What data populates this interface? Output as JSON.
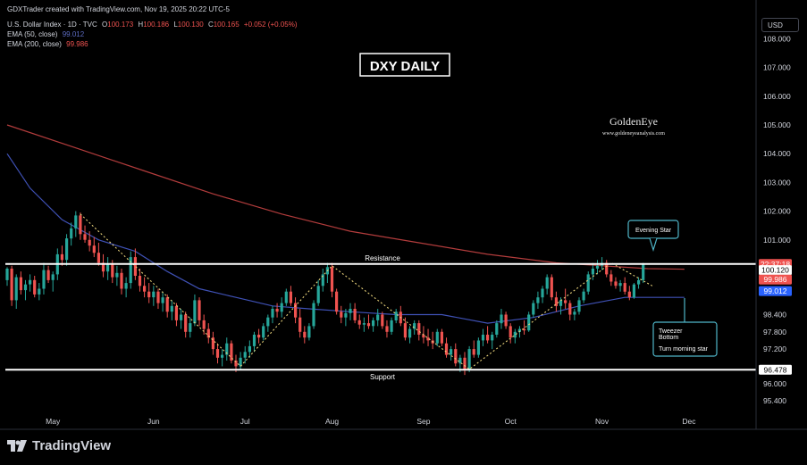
{
  "header": {
    "creator": "GDXTrader created with TradingView.com, Nov 19, 2025 20:22 UTC-5",
    "symbol": "U.S. Dollar Index · 1D · TVC",
    "ohlc": {
      "o_label": "O",
      "o": "100.173",
      "h_label": "H",
      "h": "100.186",
      "l_label": "L",
      "l": "100.130",
      "c_label": "C",
      "c": "100.165",
      "change": "+0.052 (+0.05%)"
    },
    "ema50": {
      "label": "EMA (50, close)",
      "value": "99.012"
    },
    "ema200": {
      "label": "EMA (200, close)",
      "value": "99.986"
    }
  },
  "currency_button": "USD",
  "title": "DXY DAILY",
  "watermark": {
    "name": "GoldenEye",
    "url": "www.goldeneyeanalysis.com"
  },
  "annotations": {
    "resistance": "Resistance",
    "support": "Support",
    "evening_star": "Evening Star",
    "tweezer_line1": "Tweezer",
    "tweezer_line2": "Bottom",
    "tweezer_line3": "Turn morning star"
  },
  "brand": "TradingView",
  "colors": {
    "background": "#000000",
    "up": "#26a69a",
    "down": "#ef5350",
    "ema50": "#3f51b5",
    "ema200": "#b23c3c",
    "level_line": "#ffffff",
    "callout_border": "#4fb6c9",
    "zigzag": "#e8d27a"
  },
  "chart_data": {
    "type": "candlestick",
    "price_axis": {
      "ticks": [
        "108.000",
        "107.000",
        "106.000",
        "105.000",
        "104.000",
        "103.000",
        "102.000",
        "101.000",
        "100.120",
        "98.400",
        "97.800",
        "97.200",
        "96.000",
        "95.400"
      ],
      "ylim": [
        95.0,
        108.5
      ],
      "badges": [
        {
          "label": "22:37:18",
          "value": 100.16,
          "color": "#ef5350",
          "text_color": "#ffffff"
        },
        {
          "label": "100.120",
          "value": 99.95,
          "color": "#ffffff",
          "text_color": "#000000"
        },
        {
          "label": "99.986",
          "value": 99.62,
          "color": "#ef5350",
          "text_color": "#ffffff"
        },
        {
          "label": "99.012",
          "value": 99.22,
          "color": "#2962ff",
          "text_color": "#ffffff"
        },
        {
          "label": "96.478",
          "value": 96.48,
          "color": "#ffffff",
          "text_color": "#000000"
        }
      ]
    },
    "time_axis": {
      "labels": [
        "May",
        "Jun",
        "Jul",
        "Aug",
        "Sep",
        "Oct",
        "Nov",
        "Dec"
      ],
      "label_positions": [
        10,
        32,
        52,
        71,
        91,
        110,
        130,
        149
      ],
      "n_slots": 156
    },
    "levels": {
      "resistance": 100.16,
      "support": 96.48
    },
    "ema200": [
      [
        0,
        105.0
      ],
      [
        15,
        104.2
      ],
      [
        30,
        103.4
      ],
      [
        45,
        102.6
      ],
      [
        60,
        101.9
      ],
      [
        75,
        101.3
      ],
      [
        90,
        100.9
      ],
      [
        105,
        100.5
      ],
      [
        120,
        100.2
      ],
      [
        140,
        100.0
      ],
      [
        148,
        99.98
      ]
    ],
    "ema50": [
      [
        0,
        104.0
      ],
      [
        5,
        102.8
      ],
      [
        12,
        101.7
      ],
      [
        20,
        101.0
      ],
      [
        28,
        100.6
      ],
      [
        35,
        99.9
      ],
      [
        42,
        99.3
      ],
      [
        50,
        99.0
      ],
      [
        58,
        98.7
      ],
      [
        66,
        98.6
      ],
      [
        75,
        98.5
      ],
      [
        85,
        98.4
      ],
      [
        95,
        98.4
      ],
      [
        105,
        98.1
      ],
      [
        115,
        98.3
      ],
      [
        125,
        98.7
      ],
      [
        135,
        99.0
      ],
      [
        148,
        99.0
      ]
    ],
    "zigzag": [
      [
        16,
        101.9
      ],
      [
        51,
        96.6
      ],
      [
        71,
        100.1
      ],
      [
        101,
        96.5
      ],
      [
        132,
        100.2
      ],
      [
        141,
        99.4
      ]
    ],
    "candles": [
      [
        99.6,
        100.05,
        99.4,
        100.0
      ],
      [
        100.0,
        100.1,
        98.7,
        98.9
      ],
      [
        98.9,
        99.8,
        98.6,
        99.7
      ],
      [
        99.7,
        99.9,
        99.1,
        99.25
      ],
      [
        99.25,
        99.6,
        98.9,
        99.45
      ],
      [
        99.45,
        99.8,
        99.2,
        99.6
      ],
      [
        99.6,
        99.75,
        99.0,
        99.1
      ],
      [
        99.1,
        99.5,
        98.9,
        99.3
      ],
      [
        99.3,
        100.2,
        99.1,
        99.95
      ],
      [
        99.95,
        100.1,
        99.5,
        99.6
      ],
      [
        99.6,
        99.9,
        99.2,
        99.8
      ],
      [
        99.8,
        100.7,
        99.6,
        100.5
      ],
      [
        100.5,
        100.8,
        100.1,
        100.3
      ],
      [
        100.3,
        101.2,
        100.1,
        101.05
      ],
      [
        101.05,
        101.6,
        100.8,
        101.4
      ],
      [
        101.4,
        102.0,
        101.1,
        101.85
      ],
      [
        101.85,
        101.95,
        101.0,
        101.2
      ],
      [
        101.2,
        101.5,
        100.9,
        101.0
      ],
      [
        101.0,
        101.3,
        100.6,
        100.8
      ],
      [
        100.8,
        101.1,
        100.4,
        100.55
      ],
      [
        100.55,
        100.9,
        100.1,
        100.2
      ],
      [
        100.2,
        100.5,
        99.7,
        99.9
      ],
      [
        99.9,
        100.4,
        99.6,
        100.15
      ],
      [
        100.15,
        100.3,
        99.5,
        99.7
      ],
      [
        99.7,
        100.1,
        99.4,
        99.85
      ],
      [
        99.85,
        100.0,
        99.1,
        99.3
      ],
      [
        99.3,
        99.7,
        99.0,
        99.5
      ],
      [
        99.5,
        100.6,
        99.3,
        100.4
      ],
      [
        100.4,
        100.7,
        99.6,
        99.75
      ],
      [
        99.75,
        100.0,
        99.2,
        99.4
      ],
      [
        99.4,
        99.7,
        99.0,
        99.2
      ],
      [
        99.2,
        99.5,
        98.8,
        99.0
      ],
      [
        99.0,
        99.4,
        98.7,
        99.2
      ],
      [
        99.2,
        99.3,
        98.6,
        98.8
      ],
      [
        98.8,
        99.2,
        98.5,
        99.0
      ],
      [
        99.0,
        99.1,
        98.3,
        98.5
      ],
      [
        98.5,
        98.9,
        98.2,
        98.7
      ],
      [
        98.7,
        98.8,
        98.0,
        98.2
      ],
      [
        98.2,
        98.6,
        97.9,
        98.4
      ],
      [
        98.4,
        98.5,
        97.6,
        97.8
      ],
      [
        97.8,
        98.3,
        97.6,
        98.1
      ],
      [
        98.1,
        99.1,
        98.0,
        98.9
      ],
      [
        98.9,
        99.0,
        98.0,
        98.2
      ],
      [
        98.2,
        98.4,
        97.7,
        97.9
      ],
      [
        97.9,
        98.1,
        97.4,
        97.6
      ],
      [
        97.6,
        97.8,
        97.0,
        97.2
      ],
      [
        97.2,
        97.4,
        96.7,
        96.9
      ],
      [
        96.9,
        97.2,
        96.6,
        97.0
      ],
      [
        97.0,
        97.6,
        96.8,
        97.4
      ],
      [
        97.4,
        97.5,
        96.7,
        96.8
      ],
      [
        96.8,
        97.0,
        96.4,
        96.6
      ],
      [
        96.6,
        97.1,
        96.5,
        96.9
      ],
      [
        96.9,
        97.3,
        96.7,
        97.1
      ],
      [
        97.1,
        97.5,
        96.9,
        97.3
      ],
      [
        97.3,
        97.8,
        97.1,
        97.7
      ],
      [
        97.7,
        97.9,
        97.4,
        97.6
      ],
      [
        97.6,
        98.1,
        97.5,
        98.0
      ],
      [
        98.0,
        98.4,
        97.8,
        98.3
      ],
      [
        98.3,
        98.7,
        98.1,
        98.6
      ],
      [
        98.6,
        98.8,
        98.3,
        98.5
      ],
      [
        98.5,
        99.0,
        98.3,
        98.8
      ],
      [
        98.8,
        99.3,
        98.7,
        99.2
      ],
      [
        99.2,
        99.4,
        98.7,
        98.8
      ],
      [
        98.8,
        99.0,
        98.1,
        98.3
      ],
      [
        98.3,
        98.6,
        97.6,
        97.8
      ],
      [
        97.8,
        98.0,
        97.4,
        97.6
      ],
      [
        97.6,
        98.1,
        97.5,
        98.0
      ],
      [
        98.0,
        98.9,
        97.9,
        98.8
      ],
      [
        98.8,
        99.6,
        98.7,
        99.4
      ],
      [
        99.4,
        100.0,
        99.2,
        99.8
      ],
      [
        99.8,
        100.2,
        99.5,
        100.05
      ],
      [
        100.05,
        100.2,
        99.0,
        99.2
      ],
      [
        99.2,
        99.3,
        98.4,
        98.5
      ],
      [
        98.5,
        98.7,
        98.1,
        98.3
      ],
      [
        98.3,
        98.6,
        98.0,
        98.45
      ],
      [
        98.45,
        98.8,
        98.2,
        98.6
      ],
      [
        98.6,
        98.8,
        98.1,
        98.2
      ],
      [
        98.2,
        98.4,
        97.9,
        98.05
      ],
      [
        98.05,
        98.3,
        97.8,
        98.1
      ],
      [
        98.1,
        98.4,
        97.9,
        98.0
      ],
      [
        98.0,
        98.3,
        97.8,
        98.2
      ],
      [
        98.2,
        98.6,
        98.0,
        98.4
      ],
      [
        98.4,
        98.5,
        97.9,
        98.0
      ],
      [
        98.0,
        98.2,
        97.6,
        97.8
      ],
      [
        97.8,
        98.3,
        97.7,
        98.2
      ],
      [
        98.2,
        98.6,
        98.1,
        98.5
      ],
      [
        98.5,
        98.7,
        98.0,
        98.1
      ],
      [
        98.1,
        98.3,
        97.5,
        97.6
      ],
      [
        97.6,
        98.0,
        97.4,
        97.9
      ],
      [
        97.9,
        98.2,
        97.7,
        98.1
      ],
      [
        98.1,
        98.2,
        97.5,
        97.7
      ],
      [
        97.7,
        98.0,
        97.4,
        97.6
      ],
      [
        97.6,
        97.9,
        97.3,
        97.5
      ],
      [
        97.5,
        97.8,
        97.2,
        97.4
      ],
      [
        97.4,
        97.9,
        97.3,
        97.8
      ],
      [
        97.8,
        97.9,
        97.3,
        97.4
      ],
      [
        97.4,
        97.6,
        96.9,
        97.0
      ],
      [
        97.0,
        97.3,
        96.8,
        97.2
      ],
      [
        97.2,
        97.4,
        96.6,
        96.7
      ],
      [
        96.7,
        97.0,
        96.4,
        96.9
      ],
      [
        96.9,
        97.1,
        96.3,
        96.5
      ],
      [
        96.5,
        97.3,
        96.4,
        97.2
      ],
      [
        97.2,
        97.5,
        96.9,
        97.0
      ],
      [
        97.0,
        97.6,
        96.9,
        97.5
      ],
      [
        97.5,
        97.9,
        97.3,
        97.7
      ],
      [
        97.7,
        98.0,
        97.4,
        97.5
      ],
      [
        97.5,
        97.8,
        97.2,
        97.7
      ],
      [
        97.7,
        98.2,
        97.6,
        98.1
      ],
      [
        98.1,
        98.6,
        97.9,
        98.4
      ],
      [
        98.4,
        98.5,
        97.9,
        98.0
      ],
      [
        98.0,
        98.1,
        97.4,
        97.6
      ],
      [
        97.6,
        97.9,
        97.4,
        97.8
      ],
      [
        97.8,
        98.0,
        97.6,
        97.9
      ],
      [
        97.9,
        98.2,
        97.7,
        97.85
      ],
      [
        97.85,
        98.5,
        97.8,
        98.4
      ],
      [
        98.4,
        98.9,
        98.3,
        98.8
      ],
      [
        98.8,
        99.2,
        98.6,
        99.0
      ],
      [
        99.0,
        99.4,
        98.8,
        99.3
      ],
      [
        99.3,
        99.8,
        99.1,
        99.7
      ],
      [
        99.7,
        99.8,
        98.9,
        99.0
      ],
      [
        99.0,
        99.2,
        98.5,
        98.7
      ],
      [
        98.7,
        99.0,
        98.4,
        98.9
      ],
      [
        98.9,
        99.3,
        98.6,
        98.8
      ],
      [
        98.8,
        98.9,
        98.2,
        98.4
      ],
      [
        98.4,
        98.6,
        98.2,
        98.5
      ],
      [
        98.5,
        99.0,
        98.4,
        98.9
      ],
      [
        98.9,
        99.3,
        98.8,
        99.2
      ],
      [
        99.2,
        99.9,
        99.1,
        99.8
      ],
      [
        99.8,
        100.2,
        99.6,
        100.0
      ],
      [
        100.0,
        100.3,
        99.8,
        100.1
      ],
      [
        100.1,
        100.4,
        99.95,
        100.2
      ],
      [
        100.2,
        100.3,
        99.7,
        99.8
      ],
      [
        99.8,
        99.95,
        99.4,
        99.55
      ],
      [
        99.55,
        99.7,
        99.3,
        99.4
      ],
      [
        99.4,
        99.6,
        99.2,
        99.5
      ],
      [
        99.5,
        99.7,
        99.1,
        99.2
      ],
      [
        99.2,
        99.4,
        98.9,
        99.0
      ],
      [
        99.0,
        99.5,
        98.95,
        99.45
      ],
      [
        99.45,
        99.7,
        99.3,
        99.6
      ],
      [
        99.6,
        100.2,
        99.5,
        100.17
      ]
    ]
  }
}
